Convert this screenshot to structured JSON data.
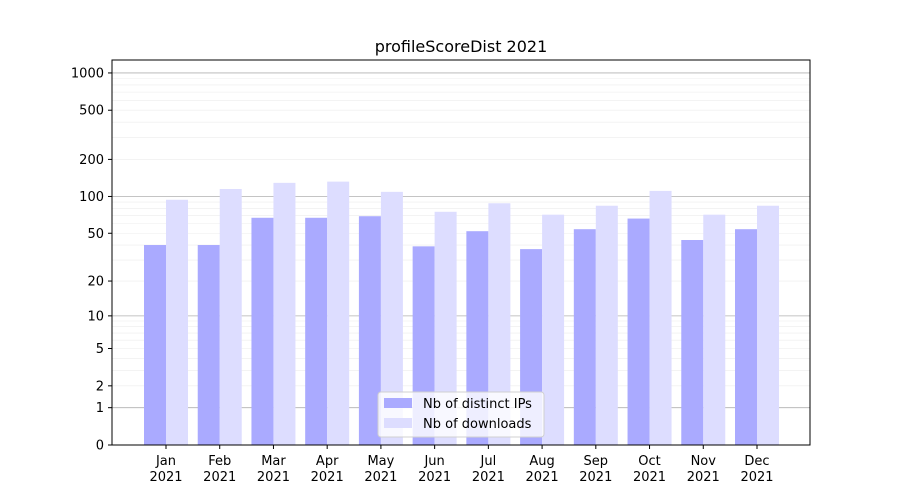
{
  "chart_data": {
    "type": "bar",
    "title": "profileScoreDist 2021",
    "xlabel": "",
    "ylabel": "",
    "yscale": "symlog (log10(1+y))",
    "ylim": [
      0,
      1300
    ],
    "yticks": [
      0,
      1,
      2,
      5,
      10,
      20,
      50,
      100,
      200,
      500,
      1000
    ],
    "ytick_labels": [
      "0",
      "1",
      "2",
      "5",
      "10",
      "20",
      "50",
      "100",
      "200",
      "500",
      "1000"
    ],
    "grid": true,
    "legend_placement": "bottom-center",
    "categories": [
      "Jan\n2021",
      "Feb\n2021",
      "Mar\n2021",
      "Apr\n2021",
      "May\n2021",
      "Jun\n2021",
      "Jul\n2021",
      "Aug\n2021",
      "Sep\n2021",
      "Oct\n2021",
      "Nov\n2021",
      "Dec\n2021"
    ],
    "category_labels": [
      [
        "Jan",
        "2021"
      ],
      [
        "Feb",
        "2021"
      ],
      [
        "Mar",
        "2021"
      ],
      [
        "Apr",
        "2021"
      ],
      [
        "May",
        "2021"
      ],
      [
        "Jun",
        "2021"
      ],
      [
        "Jul",
        "2021"
      ],
      [
        "Aug",
        "2021"
      ],
      [
        "Sep",
        "2021"
      ],
      [
        "Oct",
        "2021"
      ],
      [
        "Nov",
        "2021"
      ],
      [
        "Dec",
        "2021"
      ]
    ],
    "series": [
      {
        "name": "Nb of distinct IPs",
        "color": "#aaaaff",
        "values": [
          40,
          40,
          67,
          67,
          69,
          39,
          52,
          37,
          54,
          66,
          44,
          54
        ]
      },
      {
        "name": "Nb of downloads",
        "color": "#ddddff",
        "values": [
          94,
          115,
          129,
          132,
          109,
          75,
          88,
          71,
          84,
          111,
          71,
          84
        ]
      }
    ]
  }
}
